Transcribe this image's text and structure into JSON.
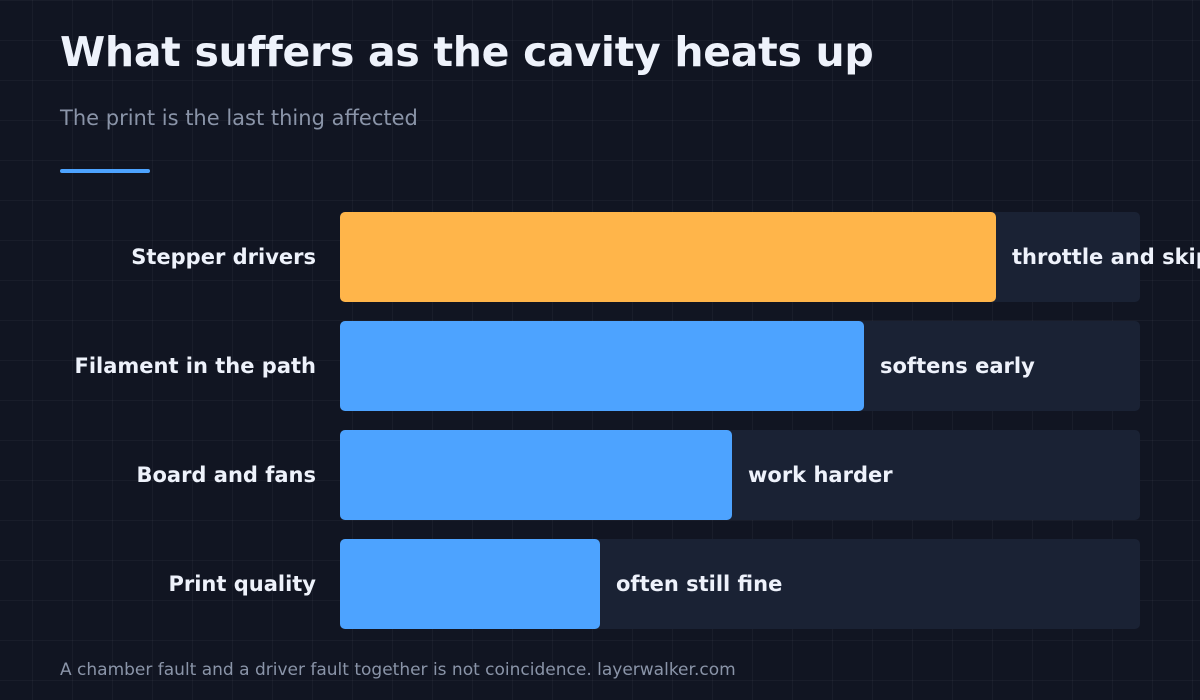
{
  "header": {
    "title": "What suffers as the cavity heats up",
    "subtitle": "The print is the last thing affected"
  },
  "footer": {
    "text": "A chamber fault and a driver fault together is not coincidence. layerwalker.com"
  },
  "colors": {
    "accent": "#4da3ff",
    "highlight": "#ffb54a",
    "track": "#1a2234",
    "background": "#111522"
  },
  "chart_data": {
    "type": "bar",
    "orientation": "horizontal",
    "title": "What suffers as the cavity heats up",
    "subtitle": "The print is the last thing affected",
    "categories": [
      "Stepper drivers",
      "Filament in the path",
      "Board and fans",
      "Print quality"
    ],
    "values": [
      82,
      65.5,
      49,
      32.5
    ],
    "annotations": [
      "throttle and skip",
      "softens early",
      "work harder",
      "often still fine"
    ],
    "highlighted_category": "Stepper drivers",
    "xlim": [
      0,
      100
    ],
    "xlabel": "",
    "ylabel": "",
    "grid": false,
    "legend": "none"
  }
}
